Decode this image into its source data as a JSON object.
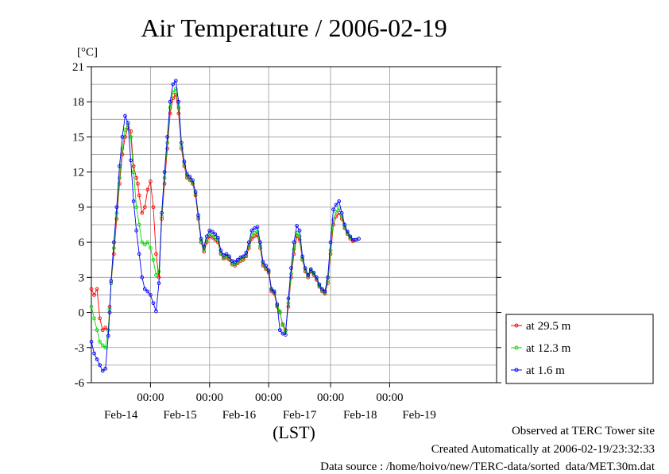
{
  "chart_data": {
    "type": "line",
    "title": "Air Temperature / 2006-02-19",
    "ylabel": "[°C]",
    "xlabel": "(LST)",
    "ylim": [
      -6,
      21
    ],
    "yticks": [
      -6,
      -3,
      0,
      3,
      6,
      9,
      12,
      15,
      18,
      21
    ],
    "xlim": [
      0,
      144
    ],
    "time_tick_label": "00:00",
    "time_ticks": [
      21,
      42,
      63,
      85,
      106
    ],
    "day_ticks": [
      {
        "label": "Feb-14",
        "x": 10.5
      },
      {
        "label": "Feb-15",
        "x": 31.5
      },
      {
        "label": "Feb-16",
        "x": 52.5
      },
      {
        "label": "Feb-17",
        "x": 74
      },
      {
        "label": "Feb-18",
        "x": 95.5
      },
      {
        "label": "Feb-19",
        "x": 116.5
      }
    ],
    "x_unit": "hours since 2006-02-13 03:00 LST",
    "grid": true,
    "legend_position": "right",
    "series": [
      {
        "name": "at 29.5 m",
        "color": "#ff0000",
        "points": [
          [
            0,
            2
          ],
          [
            1,
            1.5
          ],
          [
            2,
            2
          ],
          [
            3,
            -0.5
          ],
          [
            4,
            -1.5
          ],
          [
            5,
            -1.3
          ],
          [
            6,
            -1.5
          ],
          [
            6.5,
            0.5
          ],
          [
            7,
            2.5
          ],
          [
            8,
            5
          ],
          [
            9,
            8
          ],
          [
            10,
            11
          ],
          [
            11,
            13.5
          ],
          [
            12,
            15
          ],
          [
            13,
            15.8
          ],
          [
            14,
            15.5
          ],
          [
            15,
            12.5
          ],
          [
            16,
            11.5
          ],
          [
            16.5,
            11
          ],
          [
            17,
            10
          ],
          [
            18,
            8.5
          ],
          [
            19,
            9
          ],
          [
            20,
            10.5
          ],
          [
            21,
            11.2
          ],
          [
            22,
            9
          ],
          [
            23,
            5
          ],
          [
            24,
            3
          ],
          [
            25,
            8
          ],
          [
            26,
            11
          ],
          [
            27,
            14
          ],
          [
            28,
            17
          ],
          [
            29,
            18.3
          ],
          [
            30,
            18.6
          ],
          [
            31,
            17
          ],
          [
            32,
            14
          ],
          [
            33,
            12.5
          ],
          [
            34,
            11.5
          ],
          [
            35,
            11.3
          ],
          [
            36,
            11
          ],
          [
            37,
            10
          ],
          [
            38,
            8
          ],
          [
            39,
            6
          ],
          [
            40,
            5.2
          ],
          [
            41,
            6
          ],
          [
            42,
            6.5
          ],
          [
            43,
            6.4
          ],
          [
            44,
            6.2
          ],
          [
            45,
            6
          ],
          [
            46,
            5
          ],
          [
            47,
            4.6
          ],
          [
            48,
            4.7
          ],
          [
            49,
            4.5
          ],
          [
            50,
            4.1
          ],
          [
            51,
            4
          ],
          [
            52,
            4.2
          ],
          [
            53,
            4.4
          ],
          [
            54,
            4.5
          ],
          [
            55,
            4.8
          ],
          [
            56,
            5.5
          ],
          [
            57,
            6.3
          ],
          [
            58,
            6.5
          ],
          [
            59,
            6.6
          ],
          [
            60,
            5.5
          ],
          [
            61,
            4
          ],
          [
            62,
            3.7
          ],
          [
            63,
            3.4
          ],
          [
            64,
            1.8
          ],
          [
            65,
            1.6
          ],
          [
            66,
            0.5
          ],
          [
            67,
            0
          ],
          [
            68,
            -1
          ],
          [
            69,
            -1.5
          ],
          [
            70,
            0.5
          ],
          [
            71,
            3
          ],
          [
            72,
            5
          ],
          [
            73,
            6.5
          ],
          [
            74,
            6.2
          ],
          [
            75,
            4.5
          ],
          [
            76,
            3.5
          ],
          [
            77,
            3
          ],
          [
            78,
            3.5
          ],
          [
            79,
            3.2
          ],
          [
            80,
            2.8
          ],
          [
            81,
            2.2
          ],
          [
            82,
            1.8
          ],
          [
            83,
            1.6
          ],
          [
            84,
            2.5
          ],
          [
            85,
            5
          ],
          [
            86,
            7.5
          ],
          [
            87,
            8.2
          ],
          [
            88,
            8.5
          ],
          [
            89,
            8
          ],
          [
            90,
            7.2
          ],
          [
            91,
            6.7
          ],
          [
            92,
            6.3
          ],
          [
            93,
            6.1
          ],
          [
            94,
            6.2
          ],
          [
            95,
            6.3
          ]
        ]
      },
      {
        "name": "at 12.3 m",
        "color": "#00dd00",
        "points": [
          [
            0,
            0.5
          ],
          [
            1,
            -0.5
          ],
          [
            2,
            -1.5
          ],
          [
            3,
            -2.5
          ],
          [
            4,
            -2.8
          ],
          [
            5,
            -3
          ],
          [
            6,
            -1.5
          ],
          [
            6.5,
            0.3
          ],
          [
            7,
            2.5
          ],
          [
            8,
            5.5
          ],
          [
            9,
            8.5
          ],
          [
            10,
            11.5
          ],
          [
            11,
            14
          ],
          [
            12,
            15.6
          ],
          [
            13,
            16
          ],
          [
            14,
            15
          ],
          [
            15,
            12
          ],
          [
            16,
            9
          ],
          [
            17,
            7.5
          ],
          [
            18,
            6
          ],
          [
            19,
            5.8
          ],
          [
            20,
            6
          ],
          [
            21,
            5.5
          ],
          [
            22,
            4.5
          ],
          [
            23,
            3.2
          ],
          [
            24,
            3.5
          ],
          [
            25,
            8.2
          ],
          [
            26,
            11.5
          ],
          [
            27,
            14.5
          ],
          [
            28,
            17.5
          ],
          [
            29,
            18.8
          ],
          [
            30,
            19.1
          ],
          [
            31,
            17.5
          ],
          [
            32,
            14.2
          ],
          [
            33,
            12.7
          ],
          [
            34,
            11.6
          ],
          [
            35,
            11.4
          ],
          [
            36,
            11.1
          ],
          [
            37,
            10.1
          ],
          [
            38,
            8.1
          ],
          [
            39,
            6.1
          ],
          [
            40,
            5.4
          ],
          [
            41,
            6.2
          ],
          [
            42,
            6.7
          ],
          [
            43,
            6.6
          ],
          [
            44,
            6.4
          ],
          [
            45,
            6.2
          ],
          [
            46,
            5.1
          ],
          [
            47,
            4.7
          ],
          [
            48,
            4.8
          ],
          [
            49,
            4.6
          ],
          [
            50,
            4.2
          ],
          [
            51,
            4.1
          ],
          [
            52,
            4.3
          ],
          [
            53,
            4.5
          ],
          [
            54,
            4.6
          ],
          [
            55,
            4.9
          ],
          [
            56,
            5.7
          ],
          [
            57,
            6.6
          ],
          [
            58,
            6.8
          ],
          [
            59,
            6.9
          ],
          [
            60,
            5.7
          ],
          [
            61,
            4.1
          ],
          [
            62,
            3.8
          ],
          [
            63,
            3.5
          ],
          [
            64,
            1.9
          ],
          [
            65,
            1.7
          ],
          [
            66,
            0.6
          ],
          [
            67,
            0.1
          ],
          [
            68,
            -1.1
          ],
          [
            69,
            -1.6
          ],
          [
            70,
            0.8
          ],
          [
            71,
            3.3
          ],
          [
            72,
            5.4
          ],
          [
            73,
            6.8
          ],
          [
            74,
            6.5
          ],
          [
            75,
            4.6
          ],
          [
            76,
            3.6
          ],
          [
            77,
            3.1
          ],
          [
            78,
            3.6
          ],
          [
            79,
            3.3
          ],
          [
            80,
            2.9
          ],
          [
            81,
            2.3
          ],
          [
            82,
            1.9
          ],
          [
            83,
            1.7
          ],
          [
            84,
            2.7
          ],
          [
            85,
            5.3
          ],
          [
            86,
            7.9
          ],
          [
            87,
            8.6
          ],
          [
            88,
            8.9
          ],
          [
            89,
            8.2
          ],
          [
            90,
            7.3
          ],
          [
            91,
            6.8
          ],
          [
            92,
            6.4
          ],
          [
            93,
            6.2
          ],
          [
            94,
            6.2
          ],
          [
            95,
            6.3
          ]
        ]
      },
      {
        "name": "at 1.6 m",
        "color": "#0000ff",
        "points": [
          [
            0,
            -2.5
          ],
          [
            1,
            -3.5
          ],
          [
            2,
            -4
          ],
          [
            3,
            -4.5
          ],
          [
            4,
            -5
          ],
          [
            5,
            -4.8
          ],
          [
            6,
            -2
          ],
          [
            6.5,
            0
          ],
          [
            7,
            2.7
          ],
          [
            8,
            6
          ],
          [
            9,
            9
          ],
          [
            10,
            12.5
          ],
          [
            11,
            15
          ],
          [
            12,
            16.8
          ],
          [
            13,
            16.2
          ],
          [
            14,
            13
          ],
          [
            15,
            9.5
          ],
          [
            16,
            7
          ],
          [
            17,
            5
          ],
          [
            18,
            3
          ],
          [
            19,
            2
          ],
          [
            20,
            1.8
          ],
          [
            21,
            1.5
          ],
          [
            22,
            0.8
          ],
          [
            23,
            0.1
          ],
          [
            24,
            2.5
          ],
          [
            25,
            8.5
          ],
          [
            26,
            12
          ],
          [
            27,
            15
          ],
          [
            28,
            18
          ],
          [
            29,
            19.5
          ],
          [
            30,
            19.8
          ],
          [
            31,
            18
          ],
          [
            32,
            14.5
          ],
          [
            33,
            12.9
          ],
          [
            34,
            11.8
          ],
          [
            35,
            11.6
          ],
          [
            36,
            11.3
          ],
          [
            37,
            10.3
          ],
          [
            38,
            8.3
          ],
          [
            39,
            6.3
          ],
          [
            40,
            5.6
          ],
          [
            41,
            6.5
          ],
          [
            42,
            7
          ],
          [
            43,
            6.9
          ],
          [
            44,
            6.7
          ],
          [
            45,
            6.4
          ],
          [
            46,
            5.3
          ],
          [
            47,
            4.9
          ],
          [
            48,
            5
          ],
          [
            49,
            4.8
          ],
          [
            50,
            4.4
          ],
          [
            51,
            4.3
          ],
          [
            52,
            4.5
          ],
          [
            53,
            4.7
          ],
          [
            54,
            4.8
          ],
          [
            55,
            5.1
          ],
          [
            56,
            6
          ],
          [
            57,
            7
          ],
          [
            58,
            7.2
          ],
          [
            59,
            7.3
          ],
          [
            60,
            6
          ],
          [
            61,
            4.3
          ],
          [
            62,
            4
          ],
          [
            63,
            3.6
          ],
          [
            64,
            2
          ],
          [
            65,
            1.8
          ],
          [
            66,
            0.7
          ],
          [
            67,
            -1.5
          ],
          [
            68,
            -1.8
          ],
          [
            69,
            -1.9
          ],
          [
            70,
            1.2
          ],
          [
            71,
            3.8
          ],
          [
            72,
            6
          ],
          [
            73,
            7.4
          ],
          [
            74,
            7
          ],
          [
            75,
            4.8
          ],
          [
            76,
            3.8
          ],
          [
            77,
            3.2
          ],
          [
            78,
            3.7
          ],
          [
            79,
            3.4
          ],
          [
            80,
            3
          ],
          [
            81,
            2.4
          ],
          [
            82,
            2
          ],
          [
            83,
            1.8
          ],
          [
            84,
            3
          ],
          [
            85,
            6
          ],
          [
            86,
            8.8
          ],
          [
            87,
            9.2
          ],
          [
            88,
            9.5
          ],
          [
            89,
            8.5
          ],
          [
            90,
            7.5
          ],
          [
            91,
            6.9
          ],
          [
            92,
            6.5
          ],
          [
            93,
            6.2
          ],
          [
            94,
            6.2
          ],
          [
            95,
            6.3
          ]
        ]
      }
    ]
  },
  "footer": {
    "line1": "Observed at TERC Tower site",
    "line2": "Created Automatically at 2006-02-19/23:32:33",
    "line3": "Data source : /home/hoivo/new/TERC-data/sorted  data/MET.30m.dat"
  }
}
